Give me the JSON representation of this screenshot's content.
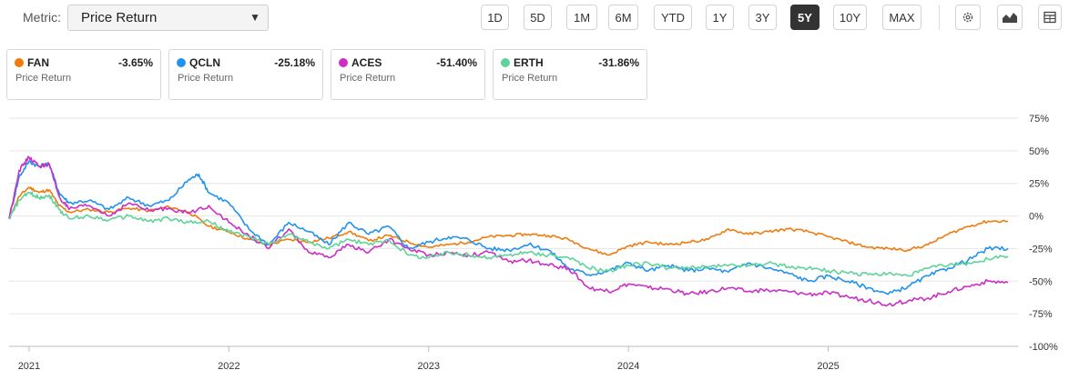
{
  "metric": {
    "label": "Metric:",
    "selected": "Price Return"
  },
  "ranges": [
    {
      "label": "1D",
      "active": false
    },
    {
      "label": "5D",
      "active": false
    },
    {
      "label": "1M",
      "active": false
    },
    {
      "label": "6M",
      "active": false
    },
    {
      "label": "YTD",
      "active": false
    },
    {
      "label": "1Y",
      "active": false
    },
    {
      "label": "3Y",
      "active": false
    },
    {
      "label": "5Y",
      "active": true
    },
    {
      "label": "10Y",
      "active": false
    },
    {
      "label": "MAX",
      "active": false
    }
  ],
  "tools": [
    {
      "name": "settings-gear-icon"
    },
    {
      "name": "chart-type-icon"
    },
    {
      "name": "table-view-icon"
    }
  ],
  "legend": [
    {
      "ticker": "FAN",
      "value": "-3.65%",
      "sub": "Price Return",
      "color": "#f07b0d"
    },
    {
      "ticker": "QCLN",
      "value": "-25.18%",
      "sub": "Price Return",
      "color": "#2193ee"
    },
    {
      "ticker": "ACES",
      "value": "-51.40%",
      "sub": "Price Return",
      "color": "#cc2ec6"
    },
    {
      "ticker": "ERTH",
      "value": "-31.86%",
      "sub": "Price Return",
      "color": "#5fd39a"
    }
  ],
  "chart_data": {
    "type": "line",
    "title": "",
    "xlabel": "",
    "ylabel": "",
    "x_unit": "year",
    "xlim": [
      2020.9,
      2025.95
    ],
    "ylim": [
      -100,
      75
    ],
    "y_ticks": [
      75,
      50,
      25,
      0,
      -25,
      -50,
      -75,
      -100
    ],
    "y_tick_labels": [
      "75%",
      "50%",
      "25%",
      "0%",
      "-25%",
      "-50%",
      "-75%",
      "-100%"
    ],
    "x_ticks": [
      2021,
      2022,
      2023,
      2024,
      2025
    ],
    "x_tick_labels": [
      "2021",
      "2022",
      "2023",
      "2024",
      "2025"
    ],
    "grid": "horizontal",
    "series": [
      {
        "name": "FAN",
        "color": "#f07b0d",
        "x": [
          2020.9,
          2020.95,
          2021.0,
          2021.05,
          2021.1,
          2021.15,
          2021.2,
          2021.3,
          2021.4,
          2021.5,
          2021.6,
          2021.7,
          2021.8,
          2021.9,
          2022.0,
          2022.1,
          2022.2,
          2022.3,
          2022.4,
          2022.5,
          2022.6,
          2022.7,
          2022.8,
          2022.9,
          2023.0,
          2023.1,
          2023.2,
          2023.3,
          2023.4,
          2023.5,
          2023.6,
          2023.7,
          2023.8,
          2023.9,
          2024.0,
          2024.1,
          2024.2,
          2024.3,
          2024.4,
          2024.5,
          2024.6,
          2024.7,
          2024.8,
          2024.9,
          2025.0,
          2025.1,
          2025.2,
          2025.3,
          2025.4,
          2025.5,
          2025.6,
          2025.7,
          2025.8,
          2025.9
        ],
        "y": [
          -2,
          15,
          22,
          18,
          20,
          8,
          3,
          5,
          3,
          6,
          4,
          7,
          3,
          -8,
          -12,
          -18,
          -22,
          -18,
          -20,
          -17,
          -12,
          -19,
          -15,
          -20,
          -24,
          -22,
          -20,
          -16,
          -15,
          -14,
          -15,
          -18,
          -25,
          -30,
          -23,
          -20,
          -22,
          -20,
          -18,
          -10,
          -14,
          -12,
          -10,
          -12,
          -16,
          -20,
          -24,
          -25,
          -26,
          -22,
          -14,
          -8,
          -4,
          -4
        ]
      },
      {
        "name": "QCLN",
        "color": "#2193ee",
        "x": [
          2020.9,
          2020.95,
          2021.0,
          2021.05,
          2021.1,
          2021.15,
          2021.2,
          2021.3,
          2021.4,
          2021.5,
          2021.6,
          2021.7,
          2021.8,
          2021.85,
          2021.9,
          2022.0,
          2022.1,
          2022.2,
          2022.3,
          2022.4,
          2022.5,
          2022.6,
          2022.7,
          2022.8,
          2022.9,
          2023.0,
          2023.1,
          2023.2,
          2023.3,
          2023.4,
          2023.5,
          2023.6,
          2023.7,
          2023.8,
          2023.9,
          2024.0,
          2024.1,
          2024.2,
          2024.3,
          2024.4,
          2024.5,
          2024.6,
          2024.7,
          2024.8,
          2024.9,
          2025.0,
          2025.1,
          2025.2,
          2025.3,
          2025.4,
          2025.5,
          2025.6,
          2025.7,
          2025.8,
          2025.9
        ],
        "y": [
          -2,
          30,
          42,
          38,
          40,
          18,
          10,
          12,
          5,
          14,
          8,
          12,
          28,
          32,
          18,
          10,
          -10,
          -22,
          -5,
          -12,
          -22,
          -5,
          -14,
          -8,
          -25,
          -20,
          -16,
          -18,
          -25,
          -26,
          -22,
          -26,
          -40,
          -45,
          -42,
          -36,
          -42,
          -38,
          -42,
          -40,
          -43,
          -36,
          -40,
          -44,
          -50,
          -46,
          -50,
          -55,
          -60,
          -54,
          -46,
          -40,
          -34,
          -25,
          -25
        ]
      },
      {
        "name": "ACES",
        "color": "#cc2ec6",
        "x": [
          2020.9,
          2020.95,
          2021.0,
          2021.05,
          2021.1,
          2021.15,
          2021.2,
          2021.3,
          2021.4,
          2021.5,
          2021.6,
          2021.7,
          2021.8,
          2021.9,
          2022.0,
          2022.1,
          2022.2,
          2022.3,
          2022.4,
          2022.5,
          2022.6,
          2022.7,
          2022.8,
          2022.9,
          2023.0,
          2023.1,
          2023.2,
          2023.3,
          2023.4,
          2023.5,
          2023.6,
          2023.7,
          2023.8,
          2023.9,
          2024.0,
          2024.1,
          2024.2,
          2024.3,
          2024.4,
          2024.5,
          2024.6,
          2024.7,
          2024.8,
          2024.9,
          2025.0,
          2025.1,
          2025.2,
          2025.3,
          2025.4,
          2025.5,
          2025.6,
          2025.7,
          2025.8,
          2025.9
        ],
        "y": [
          -2,
          35,
          45,
          38,
          40,
          15,
          5,
          8,
          0,
          10,
          4,
          6,
          2,
          8,
          -5,
          -15,
          -25,
          -10,
          -28,
          -32,
          -22,
          -28,
          -18,
          -25,
          -30,
          -28,
          -30,
          -28,
          -35,
          -34,
          -38,
          -40,
          -55,
          -58,
          -52,
          -55,
          -56,
          -60,
          -58,
          -55,
          -58,
          -57,
          -58,
          -60,
          -59,
          -62,
          -65,
          -68,
          -65,
          -63,
          -58,
          -54,
          -50,
          -51
        ]
      },
      {
        "name": "ERTH",
        "color": "#5fd39a",
        "x": [
          2020.9,
          2020.95,
          2021.0,
          2021.05,
          2021.1,
          2021.15,
          2021.2,
          2021.3,
          2021.4,
          2021.5,
          2021.6,
          2021.7,
          2021.8,
          2021.9,
          2022.0,
          2022.1,
          2022.2,
          2022.3,
          2022.4,
          2022.5,
          2022.6,
          2022.7,
          2022.8,
          2022.9,
          2023.0,
          2023.1,
          2023.2,
          2023.3,
          2023.4,
          2023.5,
          2023.6,
          2023.7,
          2023.8,
          2023.9,
          2024.0,
          2024.1,
          2024.2,
          2024.3,
          2024.4,
          2024.5,
          2024.6,
          2024.7,
          2024.8,
          2024.9,
          2025.0,
          2025.1,
          2025.2,
          2025.3,
          2025.4,
          2025.5,
          2025.6,
          2025.7,
          2025.8,
          2025.9
        ],
        "y": [
          -2,
          12,
          18,
          14,
          16,
          5,
          -2,
          0,
          -3,
          0,
          -4,
          -2,
          -5,
          -4,
          -12,
          -16,
          -22,
          -14,
          -20,
          -25,
          -18,
          -22,
          -18,
          -30,
          -32,
          -28,
          -30,
          -32,
          -30,
          -28,
          -30,
          -32,
          -40,
          -42,
          -38,
          -36,
          -40,
          -40,
          -39,
          -38,
          -38,
          -36,
          -39,
          -40,
          -42,
          -44,
          -45,
          -44,
          -46,
          -40,
          -38,
          -36,
          -33,
          -31
        ]
      }
    ]
  }
}
